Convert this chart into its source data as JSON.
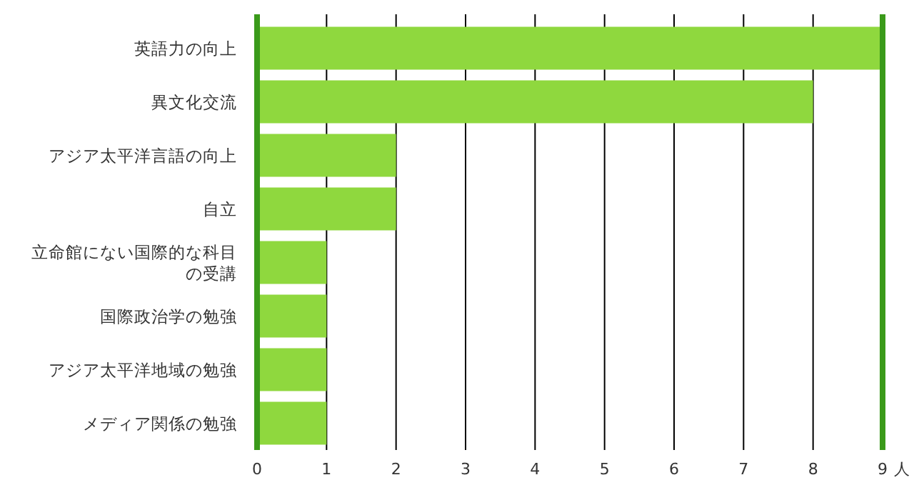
{
  "chart_data": {
    "type": "bar",
    "orientation": "horizontal",
    "categories": [
      "英語力の向上",
      "異文化交流",
      "アジア太平洋言語の向上",
      "自立",
      "立命館にない国際的な科目の受講",
      "国際政治学の勉強",
      "アジア太平洋地域の勉強",
      "メディア関係の勉強"
    ],
    "values": [
      9,
      8,
      2,
      2,
      1,
      1,
      1,
      1
    ],
    "color": "#8fd83e",
    "xlim": [
      0,
      9
    ],
    "xticks": [
      0,
      1,
      2,
      3,
      4,
      5,
      6,
      7,
      8,
      9
    ],
    "xlabel": "人",
    "grid": "x"
  }
}
